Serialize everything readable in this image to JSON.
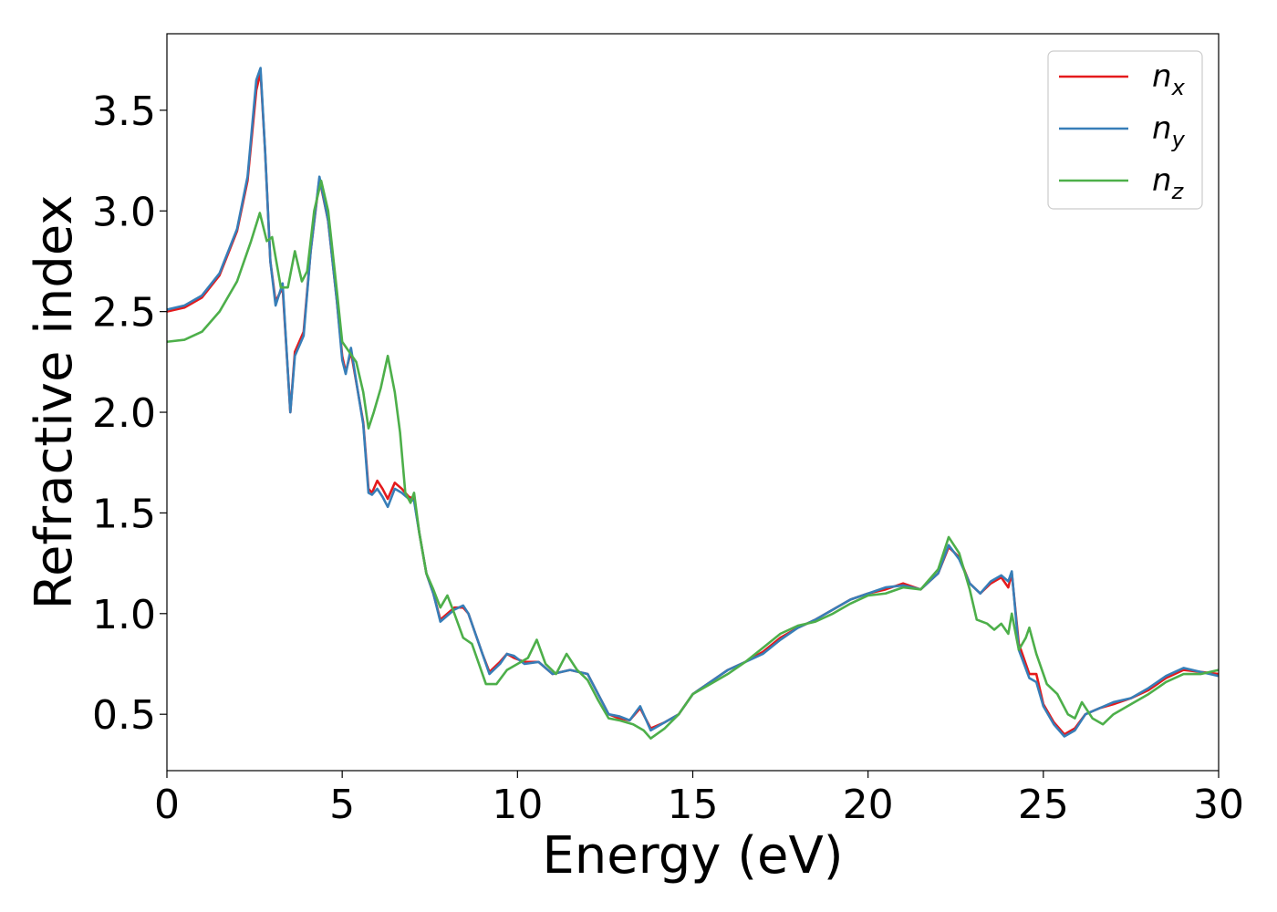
{
  "chart_data": {
    "type": "line",
    "xlabel": "Energy (eV)",
    "ylabel": "Refractive index",
    "xlim": [
      0,
      30
    ],
    "ylim": [
      0.22,
      3.88
    ],
    "xticks": [
      0,
      5,
      10,
      15,
      20,
      25,
      30
    ],
    "xtick_labels": [
      "0",
      "5",
      "10",
      "15",
      "20",
      "25",
      "30"
    ],
    "yticks": [
      0.5,
      1.0,
      1.5,
      2.0,
      2.5,
      3.0,
      3.5
    ],
    "ytick_labels": [
      "0.5",
      "1.0",
      "1.5",
      "2.0",
      "2.5",
      "3.0",
      "3.5"
    ],
    "grid": false,
    "legend_position": "top-right",
    "series": [
      {
        "name": "n_x",
        "label_main": "n",
        "label_sub": "x",
        "color": "#e41a1c",
        "points": [
          [
            0,
            2.5
          ],
          [
            0.5,
            2.52
          ],
          [
            1.0,
            2.57
          ],
          [
            1.5,
            2.68
          ],
          [
            2.0,
            2.9
          ],
          [
            2.3,
            3.15
          ],
          [
            2.55,
            3.6
          ],
          [
            2.67,
            3.69
          ],
          [
            2.8,
            3.3
          ],
          [
            2.95,
            2.75
          ],
          [
            3.1,
            2.55
          ],
          [
            3.3,
            2.62
          ],
          [
            3.45,
            2.2
          ],
          [
            3.52,
            2.0
          ],
          [
            3.65,
            2.3
          ],
          [
            3.9,
            2.4
          ],
          [
            4.1,
            2.8
          ],
          [
            4.35,
            3.16
          ],
          [
            4.6,
            2.95
          ],
          [
            4.85,
            2.55
          ],
          [
            5.0,
            2.28
          ],
          [
            5.1,
            2.2
          ],
          [
            5.25,
            2.3
          ],
          [
            5.45,
            2.1
          ],
          [
            5.6,
            1.95
          ],
          [
            5.75,
            1.62
          ],
          [
            5.85,
            1.6
          ],
          [
            6.0,
            1.66
          ],
          [
            6.15,
            1.62
          ],
          [
            6.3,
            1.57
          ],
          [
            6.5,
            1.65
          ],
          [
            6.7,
            1.62
          ],
          [
            6.9,
            1.58
          ],
          [
            7.05,
            1.57
          ],
          [
            7.2,
            1.4
          ],
          [
            7.4,
            1.2
          ],
          [
            7.6,
            1.1
          ],
          [
            7.8,
            0.97
          ],
          [
            8.0,
            1.0
          ],
          [
            8.2,
            1.03
          ],
          [
            8.45,
            1.03
          ],
          [
            8.6,
            1.0
          ],
          [
            8.8,
            0.9
          ],
          [
            9.0,
            0.8
          ],
          [
            9.2,
            0.71
          ],
          [
            9.5,
            0.76
          ],
          [
            9.7,
            0.8
          ],
          [
            9.9,
            0.78
          ],
          [
            10.2,
            0.76
          ],
          [
            10.6,
            0.76
          ],
          [
            11.0,
            0.7
          ],
          [
            11.5,
            0.72
          ],
          [
            12.0,
            0.7
          ],
          [
            12.3,
            0.6
          ],
          [
            12.6,
            0.5
          ],
          [
            12.9,
            0.48
          ],
          [
            13.2,
            0.47
          ],
          [
            13.5,
            0.53
          ],
          [
            13.8,
            0.43
          ],
          [
            14.2,
            0.46
          ],
          [
            14.6,
            0.5
          ],
          [
            15.0,
            0.6
          ],
          [
            15.5,
            0.66
          ],
          [
            16.0,
            0.72
          ],
          [
            16.5,
            0.76
          ],
          [
            17.0,
            0.81
          ],
          [
            17.5,
            0.88
          ],
          [
            18.0,
            0.93
          ],
          [
            18.5,
            0.97
          ],
          [
            19.0,
            1.02
          ],
          [
            19.5,
            1.07
          ],
          [
            20.0,
            1.1
          ],
          [
            20.5,
            1.12
          ],
          [
            21.0,
            1.15
          ],
          [
            21.5,
            1.12
          ],
          [
            22.0,
            1.2
          ],
          [
            22.3,
            1.33
          ],
          [
            22.6,
            1.28
          ],
          [
            22.9,
            1.15
          ],
          [
            23.2,
            1.1
          ],
          [
            23.5,
            1.15
          ],
          [
            23.8,
            1.18
          ],
          [
            24.0,
            1.13
          ],
          [
            24.1,
            1.2
          ],
          [
            24.3,
            0.85
          ],
          [
            24.6,
            0.7
          ],
          [
            24.8,
            0.7
          ],
          [
            25.0,
            0.55
          ],
          [
            25.3,
            0.46
          ],
          [
            25.6,
            0.4
          ],
          [
            25.9,
            0.43
          ],
          [
            26.2,
            0.5
          ],
          [
            26.6,
            0.53
          ],
          [
            27.0,
            0.55
          ],
          [
            27.5,
            0.58
          ],
          [
            28.0,
            0.62
          ],
          [
            28.5,
            0.68
          ],
          [
            29.0,
            0.72
          ],
          [
            29.5,
            0.71
          ],
          [
            30.0,
            0.7
          ]
        ]
      },
      {
        "name": "n_y",
        "label_main": "n",
        "label_sub": "y",
        "color": "#377eb8",
        "points": [
          [
            0,
            2.51
          ],
          [
            0.5,
            2.53
          ],
          [
            1.0,
            2.58
          ],
          [
            1.5,
            2.69
          ],
          [
            2.0,
            2.91
          ],
          [
            2.3,
            3.17
          ],
          [
            2.55,
            3.65
          ],
          [
            2.67,
            3.71
          ],
          [
            2.8,
            3.3
          ],
          [
            2.95,
            2.75
          ],
          [
            3.1,
            2.53
          ],
          [
            3.3,
            2.64
          ],
          [
            3.45,
            2.2
          ],
          [
            3.52,
            2.0
          ],
          [
            3.65,
            2.28
          ],
          [
            3.9,
            2.38
          ],
          [
            4.1,
            2.8
          ],
          [
            4.35,
            3.17
          ],
          [
            4.6,
            2.95
          ],
          [
            4.85,
            2.55
          ],
          [
            5.0,
            2.26
          ],
          [
            5.1,
            2.19
          ],
          [
            5.25,
            2.32
          ],
          [
            5.45,
            2.1
          ],
          [
            5.6,
            1.94
          ],
          [
            5.75,
            1.6
          ],
          [
            5.85,
            1.59
          ],
          [
            6.0,
            1.62
          ],
          [
            6.15,
            1.58
          ],
          [
            6.3,
            1.53
          ],
          [
            6.5,
            1.62
          ],
          [
            6.7,
            1.6
          ],
          [
            6.9,
            1.57
          ],
          [
            7.05,
            1.56
          ],
          [
            7.2,
            1.4
          ],
          [
            7.4,
            1.2
          ],
          [
            7.6,
            1.1
          ],
          [
            7.8,
            0.96
          ],
          [
            8.0,
            0.99
          ],
          [
            8.2,
            1.02
          ],
          [
            8.45,
            1.04
          ],
          [
            8.6,
            1.0
          ],
          [
            8.8,
            0.9
          ],
          [
            9.0,
            0.8
          ],
          [
            9.2,
            0.7
          ],
          [
            9.5,
            0.75
          ],
          [
            9.7,
            0.8
          ],
          [
            9.9,
            0.79
          ],
          [
            10.2,
            0.75
          ],
          [
            10.6,
            0.76
          ],
          [
            11.0,
            0.7
          ],
          [
            11.5,
            0.72
          ],
          [
            12.0,
            0.7
          ],
          [
            12.3,
            0.6
          ],
          [
            12.6,
            0.5
          ],
          [
            12.9,
            0.49
          ],
          [
            13.2,
            0.47
          ],
          [
            13.5,
            0.54
          ],
          [
            13.8,
            0.42
          ],
          [
            14.2,
            0.46
          ],
          [
            14.6,
            0.5
          ],
          [
            15.0,
            0.6
          ],
          [
            15.5,
            0.66
          ],
          [
            16.0,
            0.72
          ],
          [
            16.5,
            0.76
          ],
          [
            17.0,
            0.8
          ],
          [
            17.5,
            0.87
          ],
          [
            18.0,
            0.93
          ],
          [
            18.5,
            0.97
          ],
          [
            19.0,
            1.02
          ],
          [
            19.5,
            1.07
          ],
          [
            20.0,
            1.1
          ],
          [
            20.5,
            1.13
          ],
          [
            21.0,
            1.14
          ],
          [
            21.5,
            1.12
          ],
          [
            22.0,
            1.2
          ],
          [
            22.3,
            1.34
          ],
          [
            22.6,
            1.27
          ],
          [
            22.9,
            1.15
          ],
          [
            23.2,
            1.1
          ],
          [
            23.5,
            1.16
          ],
          [
            23.8,
            1.19
          ],
          [
            24.0,
            1.16
          ],
          [
            24.1,
            1.21
          ],
          [
            24.3,
            0.82
          ],
          [
            24.6,
            0.68
          ],
          [
            24.8,
            0.66
          ],
          [
            25.0,
            0.54
          ],
          [
            25.3,
            0.45
          ],
          [
            25.6,
            0.39
          ],
          [
            25.9,
            0.42
          ],
          [
            26.2,
            0.5
          ],
          [
            26.6,
            0.53
          ],
          [
            27.0,
            0.56
          ],
          [
            27.5,
            0.58
          ],
          [
            28.0,
            0.63
          ],
          [
            28.5,
            0.69
          ],
          [
            29.0,
            0.73
          ],
          [
            29.5,
            0.71
          ],
          [
            30.0,
            0.69
          ]
        ]
      },
      {
        "name": "n_z",
        "label_main": "n",
        "label_sub": "z",
        "color": "#4daf4a",
        "points": [
          [
            0,
            2.35
          ],
          [
            0.5,
            2.36
          ],
          [
            1.0,
            2.4
          ],
          [
            1.5,
            2.5
          ],
          [
            2.0,
            2.65
          ],
          [
            2.4,
            2.85
          ],
          [
            2.65,
            2.99
          ],
          [
            2.85,
            2.85
          ],
          [
            3.0,
            2.87
          ],
          [
            3.25,
            2.62
          ],
          [
            3.45,
            2.62
          ],
          [
            3.65,
            2.8
          ],
          [
            3.85,
            2.65
          ],
          [
            4.0,
            2.7
          ],
          [
            4.2,
            3.0
          ],
          [
            4.4,
            3.15
          ],
          [
            4.6,
            3.0
          ],
          [
            4.85,
            2.6
          ],
          [
            5.0,
            2.35
          ],
          [
            5.2,
            2.3
          ],
          [
            5.4,
            2.25
          ],
          [
            5.6,
            2.1
          ],
          [
            5.75,
            1.92
          ],
          [
            5.9,
            2.0
          ],
          [
            6.1,
            2.12
          ],
          [
            6.3,
            2.28
          ],
          [
            6.5,
            2.1
          ],
          [
            6.65,
            1.9
          ],
          [
            6.8,
            1.6
          ],
          [
            6.95,
            1.55
          ],
          [
            7.05,
            1.6
          ],
          [
            7.2,
            1.4
          ],
          [
            7.4,
            1.2
          ],
          [
            7.6,
            1.12
          ],
          [
            7.8,
            1.03
          ],
          [
            8.0,
            1.09
          ],
          [
            8.2,
            1.0
          ],
          [
            8.45,
            0.88
          ],
          [
            8.7,
            0.85
          ],
          [
            8.9,
            0.75
          ],
          [
            9.1,
            0.65
          ],
          [
            9.4,
            0.65
          ],
          [
            9.7,
            0.72
          ],
          [
            10.0,
            0.75
          ],
          [
            10.3,
            0.78
          ],
          [
            10.55,
            0.87
          ],
          [
            10.8,
            0.75
          ],
          [
            11.1,
            0.7
          ],
          [
            11.4,
            0.8
          ],
          [
            11.7,
            0.72
          ],
          [
            12.0,
            0.67
          ],
          [
            12.3,
            0.57
          ],
          [
            12.6,
            0.48
          ],
          [
            12.9,
            0.47
          ],
          [
            13.3,
            0.45
          ],
          [
            13.6,
            0.42
          ],
          [
            13.8,
            0.38
          ],
          [
            14.2,
            0.43
          ],
          [
            14.6,
            0.5
          ],
          [
            15.0,
            0.6
          ],
          [
            15.5,
            0.65
          ],
          [
            16.0,
            0.7
          ],
          [
            16.5,
            0.76
          ],
          [
            17.0,
            0.83
          ],
          [
            17.5,
            0.9
          ],
          [
            18.0,
            0.94
          ],
          [
            18.5,
            0.96
          ],
          [
            19.0,
            1.0
          ],
          [
            19.5,
            1.05
          ],
          [
            20.0,
            1.09
          ],
          [
            20.5,
            1.1
          ],
          [
            21.0,
            1.13
          ],
          [
            21.5,
            1.12
          ],
          [
            22.0,
            1.22
          ],
          [
            22.3,
            1.38
          ],
          [
            22.6,
            1.3
          ],
          [
            22.9,
            1.12
          ],
          [
            23.1,
            0.97
          ],
          [
            23.4,
            0.95
          ],
          [
            23.6,
            0.92
          ],
          [
            23.8,
            0.95
          ],
          [
            24.0,
            0.9
          ],
          [
            24.1,
            1.0
          ],
          [
            24.3,
            0.82
          ],
          [
            24.5,
            0.88
          ],
          [
            24.6,
            0.93
          ],
          [
            24.8,
            0.8
          ],
          [
            25.1,
            0.65
          ],
          [
            25.4,
            0.6
          ],
          [
            25.7,
            0.5
          ],
          [
            25.9,
            0.48
          ],
          [
            26.1,
            0.56
          ],
          [
            26.4,
            0.48
          ],
          [
            26.7,
            0.45
          ],
          [
            27.0,
            0.5
          ],
          [
            27.5,
            0.55
          ],
          [
            28.0,
            0.6
          ],
          [
            28.5,
            0.66
          ],
          [
            29.0,
            0.7
          ],
          [
            29.5,
            0.7
          ],
          [
            30.0,
            0.72
          ]
        ]
      }
    ]
  }
}
